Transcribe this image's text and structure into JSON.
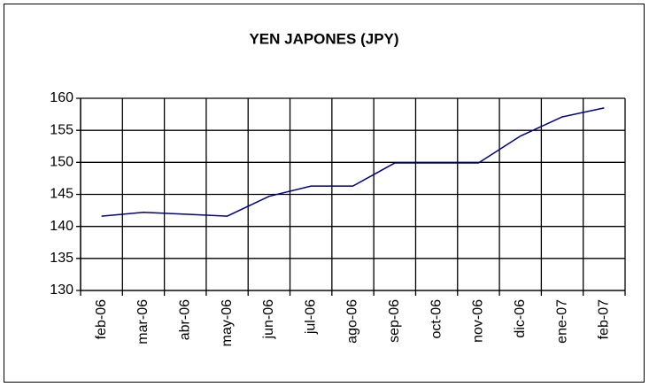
{
  "chart_data": {
    "type": "line",
    "title": "YEN JAPONES (JPY)",
    "categories": [
      "feb-06",
      "mar-06",
      "abr-06",
      "may-06",
      "jun-06",
      "jul-06",
      "ago-06",
      "sep-06",
      "oct-06",
      "nov-06",
      "dic-06",
      "ene-07",
      "feb-07"
    ],
    "series": [
      {
        "name": "JPY",
        "color": "#000080",
        "values": [
          141.6,
          142.2,
          141.9,
          141.6,
          144.7,
          146.3,
          146.3,
          149.9,
          149.9,
          149.9,
          154.1,
          157.1,
          158.5
        ]
      }
    ],
    "ylim": [
      130,
      160
    ],
    "yticks": [
      130,
      135,
      140,
      145,
      150,
      155,
      160
    ],
    "grid": true
  }
}
